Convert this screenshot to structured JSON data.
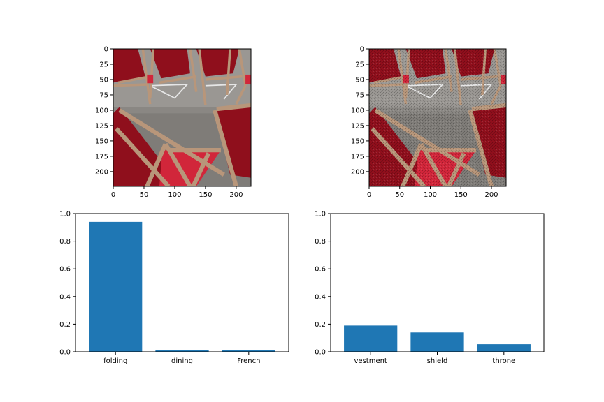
{
  "colors": {
    "bar": "#1f77b4",
    "axis": "#000000",
    "background": "#ffffff",
    "chair_red": "#8f0f1c",
    "chair_red_bright": "#d1263a",
    "floor": "#8a8783",
    "wood": "#b8967a"
  },
  "chart_data": [
    {
      "type": "image",
      "description_items": [
        "red folding chairs on grey floor (original)"
      ],
      "xlim": [
        0,
        224
      ],
      "ylim": [
        224,
        0
      ],
      "xticks": [
        "0",
        "50",
        "100",
        "150",
        "200"
      ],
      "yticks": [
        "0",
        "25",
        "50",
        "75",
        "100",
        "125",
        "150",
        "175",
        "200"
      ]
    },
    {
      "type": "image",
      "description_items": [
        "red folding chairs on grey floor (perturbed)"
      ],
      "xlim": [
        0,
        224
      ],
      "ylim": [
        224,
        0
      ],
      "xticks": [
        "0",
        "50",
        "100",
        "150",
        "200"
      ],
      "yticks": [
        "0",
        "25",
        "50",
        "75",
        "100",
        "125",
        "150",
        "175",
        "200"
      ]
    },
    {
      "type": "bar",
      "categories": [
        "folding",
        "dining",
        "French"
      ],
      "values": [
        0.94,
        0.01,
        0.01
      ],
      "ylim": [
        0,
        1
      ],
      "yticks": [
        "0.0",
        "0.2",
        "0.4",
        "0.6",
        "0.8",
        "1.0"
      ]
    },
    {
      "type": "bar",
      "categories": [
        "vestment",
        "shield",
        "throne"
      ],
      "values": [
        0.19,
        0.14,
        0.055
      ],
      "ylim": [
        0,
        1
      ],
      "yticks": [
        "0.0",
        "0.2",
        "0.4",
        "0.6",
        "0.8",
        "1.0"
      ]
    }
  ]
}
